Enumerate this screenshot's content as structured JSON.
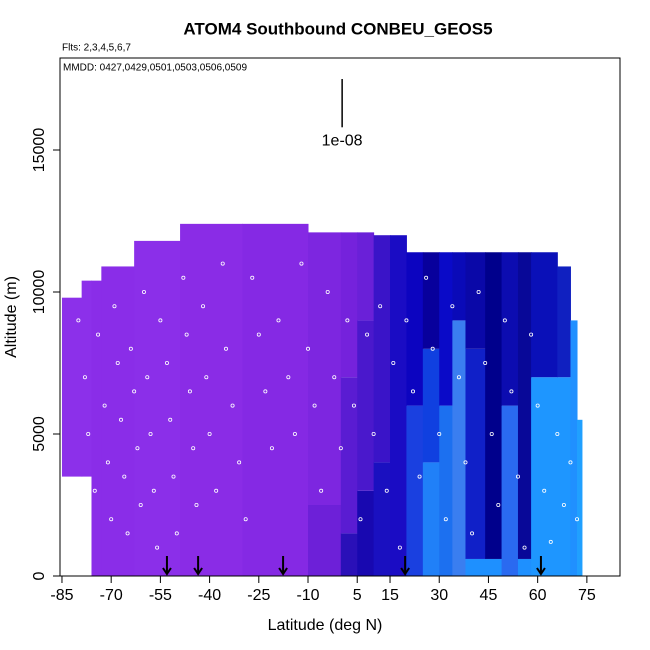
{
  "chart_data": {
    "type": "curtain",
    "title": "ATOM4 Southbound CONBEU_GEOS5",
    "subtitle": "Flts: 2,3,4,5,6,7",
    "annotation": "MMDD: 0427,0429,0501,0503,0506,0509",
    "x_label": "Latitude (deg N)",
    "y_label": "Altitude (m)",
    "xlim": [
      -85.6,
      85.1
    ],
    "ylim": [
      0,
      18240
    ],
    "xticks": [
      -85,
      -70,
      -55,
      -40,
      -25,
      -10,
      5,
      15,
      30,
      45,
      60,
      75
    ],
    "yticks": [
      0,
      5000,
      10000,
      15000
    ],
    "curtain": [
      {
        "lat": [
          -85,
          -79
        ],
        "layers": [
          {
            "alt": [
              3500,
              9800
            ],
            "color": "#8c30ea"
          }
        ]
      },
      {
        "lat": [
          -79,
          -76
        ],
        "layers": [
          {
            "alt": [
              3500,
              10400
            ],
            "color": "#8c30ea"
          }
        ]
      },
      {
        "lat": [
          -76,
          -73
        ],
        "layers": [
          {
            "alt": [
              0,
              10400
            ],
            "color": "#8a2de8"
          }
        ]
      },
      {
        "lat": [
          -73,
          -63
        ],
        "layers": [
          {
            "alt": [
              0,
              10900
            ],
            "color": "#8a2de8"
          }
        ]
      },
      {
        "lat": [
          -63,
          -49
        ],
        "layers": [
          {
            "alt": [
              0,
              11800
            ],
            "color": "#8b2fe9"
          }
        ]
      },
      {
        "lat": [
          -49,
          -30
        ],
        "layers": [
          {
            "alt": [
              0,
              12400
            ],
            "color": "#8a2ce6"
          }
        ]
      },
      {
        "lat": [
          -30,
          -10
        ],
        "layers": [
          {
            "alt": [
              0,
              12400
            ],
            "color": "#8529e4"
          }
        ]
      },
      {
        "lat": [
          -10,
          0
        ],
        "layers": [
          {
            "alt": [
              0,
              2500
            ],
            "color": "#6d20d8"
          },
          {
            "alt": [
              2500,
              12100
            ],
            "color": "#7d26e0"
          }
        ]
      },
      {
        "lat": [
          0,
          5
        ],
        "layers": [
          {
            "alt": [
              0,
              1500
            ],
            "color": "#2a10b8"
          },
          {
            "alt": [
              1500,
              7000
            ],
            "color": "#5a1cd2"
          },
          {
            "alt": [
              7000,
              12100
            ],
            "color": "#7522dc"
          }
        ]
      },
      {
        "lat": [
          5,
          10
        ],
        "layers": [
          {
            "alt": [
              0,
              3000
            ],
            "color": "#1808b0"
          },
          {
            "alt": [
              3000,
              9000
            ],
            "color": "#4a18cc"
          },
          {
            "alt": [
              9000,
              12100
            ],
            "color": "#6a20d8"
          }
        ]
      },
      {
        "lat": [
          10,
          15
        ],
        "layers": [
          {
            "alt": [
              0,
              4000
            ],
            "color": "#1a10c0"
          },
          {
            "alt": [
              4000,
              12000
            ],
            "color": "#3a14c8"
          }
        ]
      },
      {
        "lat": [
          15,
          20
        ],
        "layers": [
          {
            "alt": [
              0,
              12000
            ],
            "color": "#1a0cc4"
          }
        ]
      },
      {
        "lat": [
          20,
          25
        ],
        "layers": [
          {
            "alt": [
              0,
              6000
            ],
            "color": "#1a40e0"
          },
          {
            "alt": [
              6000,
              11400
            ],
            "color": "#0c04c0"
          }
        ]
      },
      {
        "lat": [
          25,
          30
        ],
        "layers": [
          {
            "alt": [
              0,
              4000
            ],
            "color": "#2080f8"
          },
          {
            "alt": [
              4000,
              8000
            ],
            "color": "#1040e0"
          },
          {
            "alt": [
              8000,
              11400
            ],
            "color": "#08009c"
          }
        ]
      },
      {
        "lat": [
          30,
          34
        ],
        "layers": [
          {
            "alt": [
              0,
              6000
            ],
            "color": "#1c70f0"
          },
          {
            "alt": [
              6000,
              11400
            ],
            "color": "#0a0ac8"
          }
        ]
      },
      {
        "lat": [
          34,
          38
        ],
        "layers": [
          {
            "alt": [
              0,
              9000
            ],
            "color": "#3a7ef0"
          },
          {
            "alt": [
              9000,
              11400
            ],
            "color": "#0a0ab8"
          }
        ]
      },
      {
        "lat": [
          38,
          44
        ],
        "layers": [
          {
            "alt": [
              0,
              600
            ],
            "color": "#1e90ff"
          },
          {
            "alt": [
              600,
              8000
            ],
            "color": "#1020c8"
          },
          {
            "alt": [
              8000,
              11400
            ],
            "color": "#0a08a8"
          }
        ]
      },
      {
        "lat": [
          44,
          49
        ],
        "layers": [
          {
            "alt": [
              0,
              600
            ],
            "color": "#1e90ff"
          },
          {
            "alt": [
              600,
              11400
            ],
            "color": "#00008c"
          }
        ]
      },
      {
        "lat": [
          49,
          54
        ],
        "layers": [
          {
            "alt": [
              0,
              6000
            ],
            "color": "#2a6af0"
          },
          {
            "alt": [
              6000,
              11400
            ],
            "color": "#0c0cb0"
          }
        ]
      },
      {
        "lat": [
          54,
          58
        ],
        "layers": [
          {
            "alt": [
              0,
              600
            ],
            "color": "#1e90ff"
          },
          {
            "alt": [
              600,
              11400
            ],
            "color": "#080898"
          }
        ]
      },
      {
        "lat": [
          58,
          66
        ],
        "layers": [
          {
            "alt": [
              0,
              7000
            ],
            "color": "#1e96ff"
          },
          {
            "alt": [
              7000,
              11400
            ],
            "color": "#0a10b8"
          }
        ]
      },
      {
        "lat": [
          66,
          70
        ],
        "layers": [
          {
            "alt": [
              0,
              7000
            ],
            "color": "#1e96ff"
          },
          {
            "alt": [
              7000,
              10900
            ],
            "color": "#1020c0"
          }
        ]
      },
      {
        "lat": [
          70,
          72
        ],
        "layers": [
          {
            "alt": [
              0,
              9000
            ],
            "color": "#2090ff"
          }
        ]
      },
      {
        "lat": [
          72,
          73.5
        ],
        "layers": [
          {
            "alt": [
              0,
              5500
            ],
            "color": "#20a0ff"
          }
        ]
      }
    ],
    "samples": {
      "color": "#ffffff",
      "lat": [
        -80,
        -78,
        -77,
        -75,
        -74,
        -72,
        -71,
        -70,
        -69,
        -68,
        -67,
        -66,
        -65,
        -64,
        -63,
        -62,
        -61,
        -60,
        -59,
        -58,
        -57,
        -56,
        -55,
        -53,
        -52,
        -51,
        -50,
        -48,
        -47,
        -46,
        -45,
        -44,
        -42,
        -41,
        -40,
        -38,
        -36,
        -35,
        -33,
        -31,
        -29,
        -27,
        -25,
        -23,
        -21,
        -19,
        -16,
        -14,
        -12,
        -10,
        -8,
        -6,
        -4,
        -2,
        0,
        2,
        4,
        6,
        8,
        10,
        12,
        14,
        16,
        18,
        20,
        22,
        24,
        26,
        28,
        30,
        32,
        34,
        36,
        38,
        40,
        42,
        44,
        46,
        48,
        50,
        52,
        54,
        56,
        58,
        60,
        62,
        64,
        66,
        68,
        70,
        72
      ],
      "alt": [
        9000,
        7000,
        5000,
        3000,
        8500,
        6000,
        4000,
        2000,
        9500,
        7500,
        5500,
        3500,
        1500,
        8000,
        6500,
        4500,
        2500,
        10000,
        7000,
        5000,
        3000,
        1000,
        9000,
        7500,
        5500,
        3500,
        1500,
        10500,
        8500,
        6500,
        4500,
        2500,
        9500,
        7000,
        5000,
        3000,
        11000,
        8000,
        6000,
        4000,
        2000,
        10500,
        8500,
        6500,
        4500,
        9000,
        7000,
        5000,
        11000,
        8000,
        6000,
        3000,
        10000,
        7000,
        4500,
        9000,
        6000,
        2000,
        8500,
        5000,
        9500,
        3000,
        7500,
        1000,
        9000,
        6500,
        3500,
        10500,
        8000,
        5000,
        2000,
        9500,
        7000,
        4000,
        1500,
        10000,
        7500,
        5000,
        2500,
        9000,
        6500,
        3500,
        1000,
        8500,
        6000,
        3000,
        1200,
        5000,
        2500,
        4000,
        2000
      ]
    },
    "arrows": {
      "lat": [
        -53,
        -43.5,
        -17.6,
        19.6,
        61
      ],
      "color": "#000000"
    },
    "scale_bar": {
      "lat": 0.4,
      "alt": [
        15800,
        17500
      ],
      "label": "1e-08"
    }
  }
}
